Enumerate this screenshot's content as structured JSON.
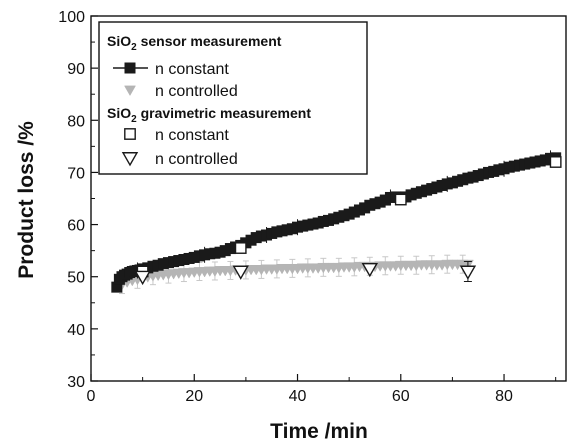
{
  "chart_data": {
    "type": "scatter",
    "xlabel": "Time /min",
    "ylabel": "Product loss /%",
    "xlim": [
      0,
      92
    ],
    "ylim": [
      30,
      100
    ],
    "xticks": [
      0,
      20,
      40,
      60,
      80
    ],
    "yticks": [
      30,
      40,
      50,
      60,
      70,
      80,
      90,
      100
    ],
    "legend": {
      "placement": "top-left",
      "group1_prefix": "SiO",
      "group1_suffix": " sensor measurement",
      "group2_prefix": "SiO",
      "group2_suffix": " gravimetric measurement",
      "subscript": "2",
      "entries": [
        {
          "label": "n constant"
        },
        {
          "label": "n controlled"
        },
        {
          "label": "n constant"
        },
        {
          "label": "n controlled"
        }
      ]
    },
    "series": [
      {
        "name": "n constant",
        "group": "SiO2 sensor measurement",
        "marker": "filled-square",
        "color": "#1a1a1a",
        "x": [
          5,
          5.5,
          6,
          6.5,
          7,
          7.5,
          8,
          8.5,
          9,
          9.5,
          10,
          11,
          12,
          13,
          14,
          15,
          16,
          17,
          18,
          19,
          20,
          21,
          22,
          23,
          24,
          25,
          26,
          27,
          28,
          29,
          30,
          31,
          32,
          33,
          34,
          35,
          36,
          37,
          38,
          39,
          40,
          41,
          42,
          43,
          44,
          45,
          46,
          47,
          48,
          49,
          50,
          51,
          52,
          53,
          54,
          55,
          56,
          57,
          58,
          59,
          60,
          61,
          62,
          63,
          64,
          65,
          66,
          67,
          68,
          69,
          70,
          71,
          72,
          73,
          74,
          75,
          76,
          77,
          78,
          79,
          80,
          81,
          82,
          83,
          84,
          85,
          86,
          87,
          88,
          89,
          90
        ],
        "y": [
          48.0,
          49.5,
          50.0,
          50.3,
          50.5,
          50.8,
          51.0,
          51.1,
          51.2,
          51.3,
          51.5,
          51.7,
          52.0,
          52.2,
          52.5,
          52.7,
          52.9,
          53.1,
          53.3,
          53.5,
          53.7,
          54.0,
          54.2,
          54.4,
          54.5,
          54.7,
          55.0,
          55.4,
          55.7,
          56.0,
          56.5,
          57.0,
          57.5,
          57.8,
          58.0,
          58.3,
          58.6,
          58.8,
          59.0,
          59.2,
          59.5,
          59.7,
          59.9,
          60.1,
          60.3,
          60.6,
          60.8,
          61.1,
          61.4,
          61.7,
          62.0,
          62.4,
          62.8,
          63.2,
          63.7,
          64.0,
          64.3,
          64.7,
          65.2,
          65.3,
          65.0,
          65.3,
          65.7,
          66.0,
          66.3,
          66.6,
          66.9,
          67.2,
          67.5,
          67.8,
          68.0,
          68.3,
          68.6,
          68.9,
          69.1,
          69.4,
          69.7,
          70.0,
          70.2,
          70.5,
          70.7,
          71.0,
          71.2,
          71.4,
          71.6,
          71.8,
          72.0,
          72.2,
          72.4,
          72.7,
          72.8
        ]
      },
      {
        "name": "n controlled",
        "group": "SiO2 sensor measurement",
        "marker": "filled-triangle-down",
        "color": "#b5b5b5",
        "x": [
          6,
          7,
          8,
          9,
          10,
          11,
          12,
          13,
          14,
          15,
          16,
          17,
          18,
          19,
          20,
          21,
          22,
          23,
          24,
          25,
          26,
          27,
          28,
          29,
          30,
          31,
          32,
          33,
          34,
          35,
          36,
          37,
          38,
          39,
          40,
          41,
          42,
          43,
          44,
          45,
          46,
          47,
          48,
          49,
          50,
          51,
          52,
          53,
          54,
          55,
          56,
          57,
          58,
          59,
          60,
          61,
          62,
          63,
          64,
          65,
          66,
          67,
          68,
          69,
          70,
          71,
          72,
          73
        ],
        "y": [
          48.5,
          49.0,
          49.3,
          49.5,
          49.8,
          50.0,
          50.2,
          50.3,
          50.4,
          50.5,
          50.6,
          50.7,
          50.8,
          50.8,
          50.9,
          51.0,
          51.0,
          51.1,
          51.1,
          51.2,
          51.2,
          51.2,
          51.3,
          51.3,
          51.3,
          51.4,
          51.4,
          51.4,
          51.5,
          51.5,
          51.5,
          51.6,
          51.6,
          51.6,
          51.6,
          51.7,
          51.7,
          51.7,
          51.7,
          51.8,
          51.8,
          51.8,
          51.8,
          51.9,
          51.9,
          51.9,
          52.0,
          52.0,
          52.0,
          52.0,
          52.1,
          52.1,
          52.1,
          52.1,
          52.2,
          52.2,
          52.2,
          52.2,
          52.3,
          52.3,
          52.3,
          52.3,
          52.3,
          52.4,
          52.4,
          52.4,
          52.4,
          52.4
        ]
      },
      {
        "name": "n constant",
        "group": "SiO2 gravimetric measurement",
        "marker": "open-square",
        "color": "#1a1a1a",
        "x": [
          10,
          29,
          60,
          90
        ],
        "y": [
          51.0,
          55.5,
          64.8,
          72.0
        ]
      },
      {
        "name": "n controlled",
        "group": "SiO2 gravimetric measurement",
        "marker": "open-triangle-down",
        "color": "#1a1a1a",
        "x": [
          10,
          29,
          54,
          73
        ],
        "y": [
          50.0,
          51.0,
          51.5,
          51.0
        ]
      }
    ]
  }
}
